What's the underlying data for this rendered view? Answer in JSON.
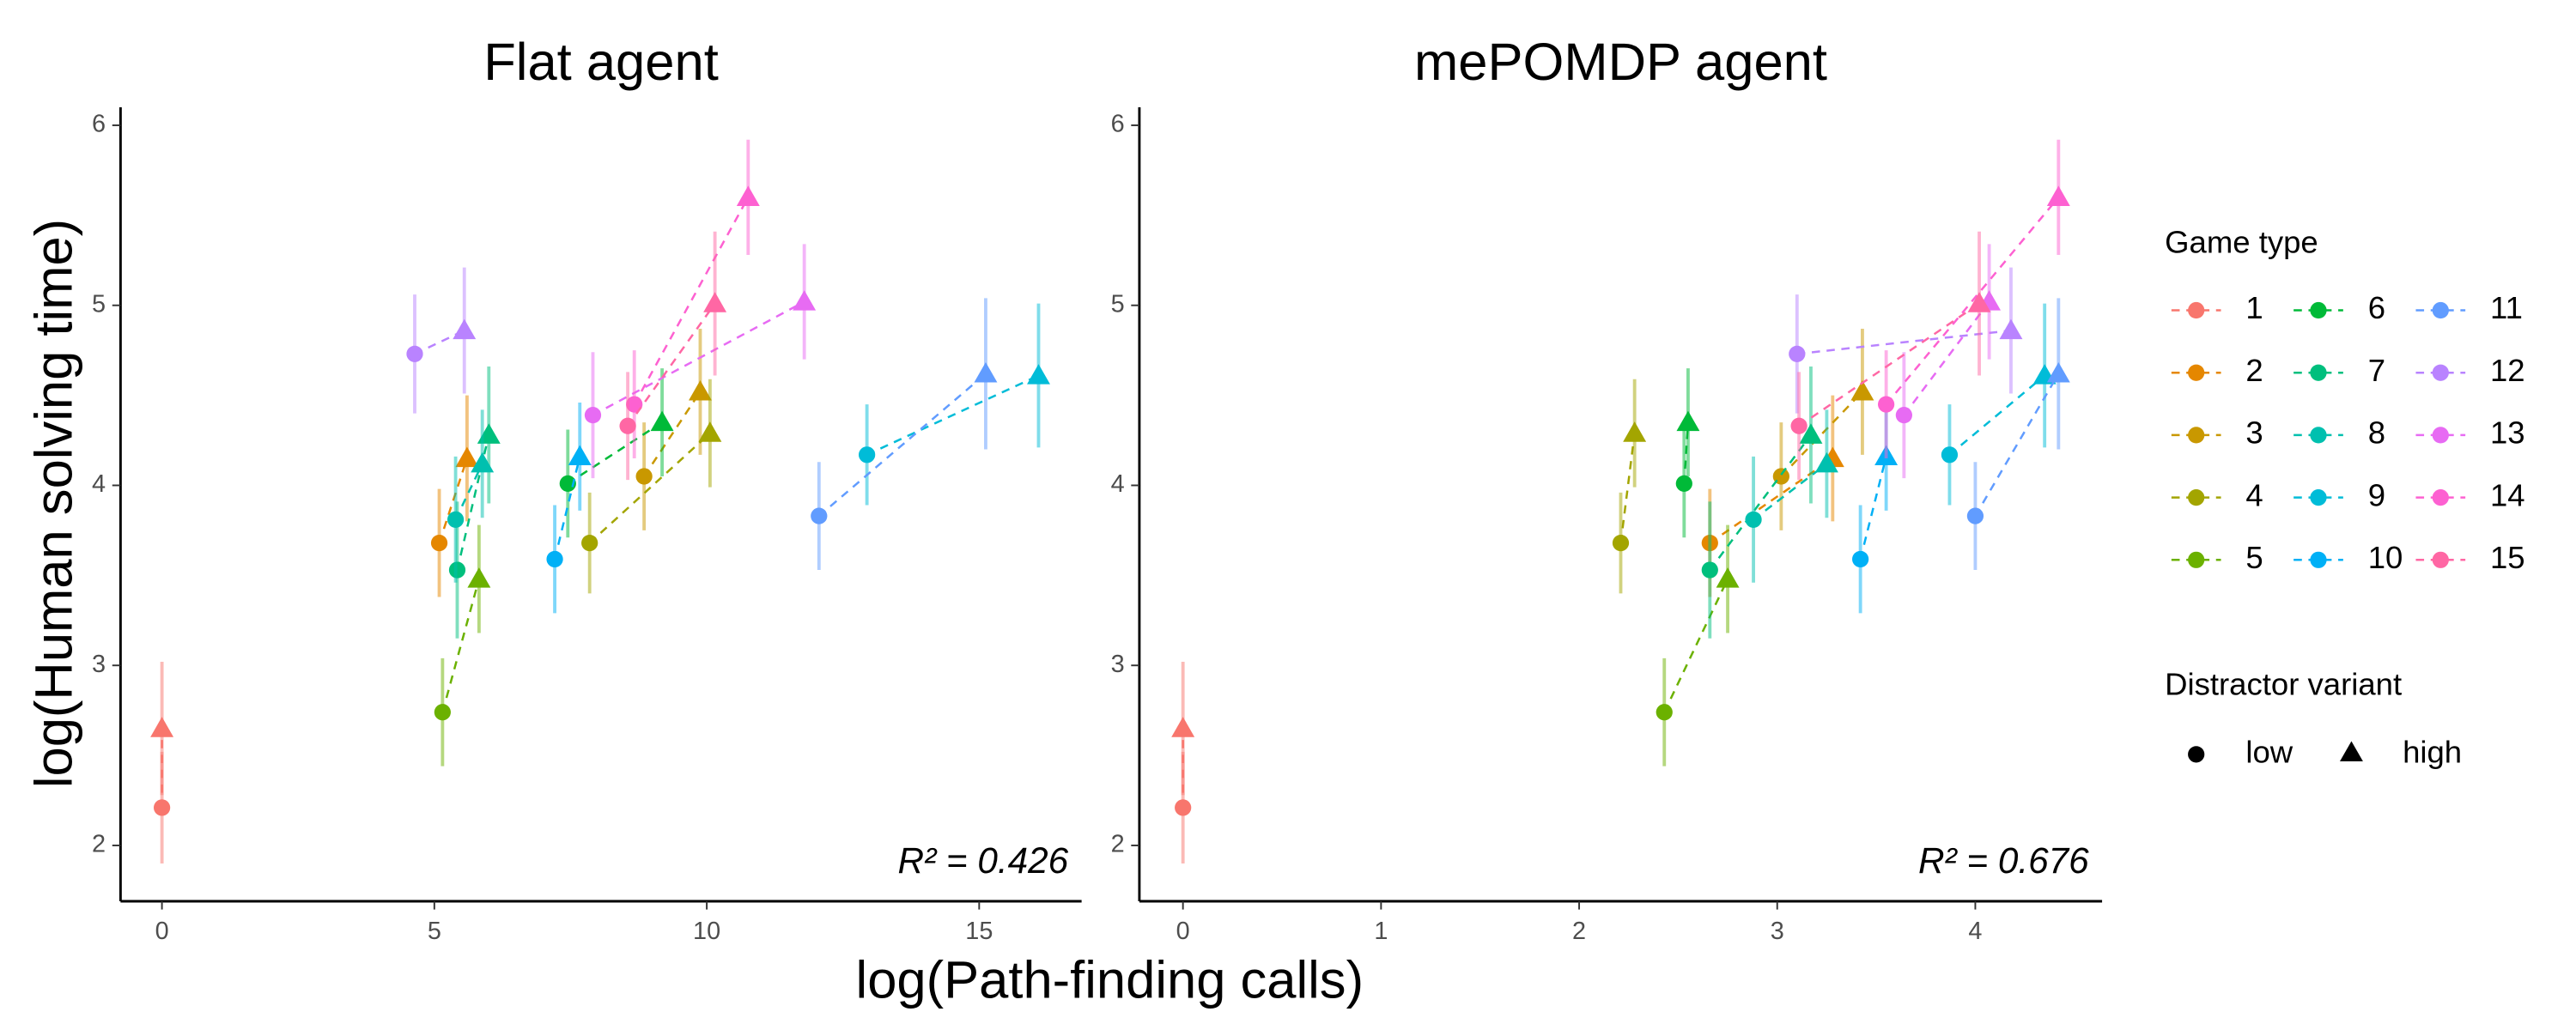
{
  "x_label": "log(Path-finding calls)",
  "y_label": "log(Human solving time)",
  "legend": {
    "title": "Game type"
  },
  "shape_legend": {
    "title": "Distractor variant",
    "labels": [
      "low",
      "high"
    ]
  },
  "chart_data": [
    {
      "type": "scatter",
      "title": "Flat agent",
      "annotation": "R² = 0.426",
      "xlim": [
        -0.76,
        16.88
      ],
      "xticks": [
        0,
        5,
        10,
        15
      ],
      "ylim": [
        1.69,
        6.1
      ],
      "yticks": [
        2,
        3,
        4,
        5,
        6
      ],
      "series": [
        {
          "name": "1",
          "color": "#F8766D",
          "x": [
            0,
            0
          ],
          "values": [
            2.21,
            2.65
          ],
          "errors": [
            0.31,
            0.37
          ]
        },
        {
          "name": "2",
          "color": "#E58700",
          "x": [
            5.09,
            5.6
          ],
          "values": [
            3.68,
            4.15
          ],
          "errors": [
            0.3,
            0.35
          ]
        },
        {
          "name": "3",
          "color": "#C99800",
          "x": [
            8.85,
            9.88
          ],
          "values": [
            4.05,
            4.52
          ],
          "errors": [
            0.3,
            0.35
          ]
        },
        {
          "name": "4",
          "color": "#A3A500",
          "x": [
            7.85,
            10.06
          ],
          "values": [
            3.68,
            4.29
          ],
          "errors": [
            0.28,
            0.3
          ]
        },
        {
          "name": "5",
          "color": "#6BB100",
          "x": [
            5.15,
            5.82
          ],
          "values": [
            2.74,
            3.48
          ],
          "errors": [
            0.3,
            0.3
          ]
        },
        {
          "name": "6",
          "color": "#00BA38",
          "x": [
            7.45,
            9.18
          ],
          "values": [
            4.01,
            4.35
          ],
          "errors": [
            0.3,
            0.3
          ]
        },
        {
          "name": "7",
          "color": "#00BF7D",
          "x": [
            5.42,
            6.0
          ],
          "values": [
            3.53,
            4.28
          ],
          "errors": [
            0.38,
            0.38
          ]
        },
        {
          "name": "8",
          "color": "#00C0AF",
          "x": [
            5.39,
            5.88
          ],
          "values": [
            3.81,
            4.12
          ],
          "errors": [
            0.35,
            0.3
          ]
        },
        {
          "name": "9",
          "color": "#00BCD8",
          "x": [
            12.94,
            16.09
          ],
          "values": [
            4.17,
            4.61
          ],
          "errors": [
            0.28,
            0.4
          ]
        },
        {
          "name": "10",
          "color": "#00B0F6",
          "x": [
            7.21,
            7.67
          ],
          "values": [
            3.59,
            4.16
          ],
          "errors": [
            0.3,
            0.3
          ]
        },
        {
          "name": "11",
          "color": "#619CFF",
          "x": [
            12.06,
            15.12
          ],
          "values": [
            3.83,
            4.62
          ],
          "errors": [
            0.3,
            0.42
          ]
        },
        {
          "name": "12",
          "color": "#B983FF",
          "x": [
            4.64,
            5.55
          ],
          "values": [
            4.73,
            4.86
          ],
          "errors": [
            0.33,
            0.35
          ]
        },
        {
          "name": "13",
          "color": "#E76BF3",
          "x": [
            7.91,
            11.79
          ],
          "values": [
            4.39,
            5.02
          ],
          "errors": [
            0.35,
            0.32
          ]
        },
        {
          "name": "14",
          "color": "#FD61D1",
          "x": [
            8.67,
            10.76
          ],
          "values": [
            4.45,
            5.6
          ],
          "errors": [
            0.3,
            0.32
          ]
        },
        {
          "name": "15",
          "color": "#FF67A4",
          "x": [
            8.55,
            10.15
          ],
          "values": [
            4.33,
            5.01
          ],
          "errors": [
            0.3,
            0.4
          ]
        }
      ]
    },
    {
      "type": "scatter",
      "title": "mePOMDP agent",
      "annotation": "R² = 0.676",
      "xlim": [
        -0.22,
        4.64
      ],
      "xticks": [
        0,
        1,
        2,
        3,
        4
      ],
      "ylim": [
        1.69,
        6.1
      ],
      "yticks": [
        2,
        3,
        4,
        5,
        6
      ],
      "series": [
        {
          "color": "#F8766D",
          "x": [
            0,
            0
          ],
          "values": [
            2.21,
            2.65
          ],
          "errors": [
            0.31,
            0.37
          ]
        },
        {
          "color": "#E58700",
          "x": [
            2.66,
            3.28
          ],
          "values": [
            3.68,
            4.15
          ],
          "errors": [
            0.3,
            0.35
          ]
        },
        {
          "color": "#C99800",
          "x": [
            3.02,
            3.43
          ],
          "values": [
            4.05,
            4.52
          ],
          "errors": [
            0.3,
            0.35
          ]
        },
        {
          "color": "#A3A500",
          "x": [
            2.21,
            2.28
          ],
          "values": [
            3.68,
            4.29
          ],
          "errors": [
            0.28,
            0.3
          ]
        },
        {
          "color": "#6BB100",
          "x": [
            2.43,
            2.75
          ],
          "values": [
            2.74,
            3.48
          ],
          "errors": [
            0.3,
            0.3
          ]
        },
        {
          "color": "#00BA38",
          "x": [
            2.53,
            2.55
          ],
          "values": [
            4.01,
            4.35
          ],
          "errors": [
            0.3,
            0.3
          ]
        },
        {
          "color": "#00BF7D",
          "x": [
            2.66,
            3.17
          ],
          "values": [
            3.53,
            4.28
          ],
          "errors": [
            0.38,
            0.38
          ]
        },
        {
          "color": "#00C0AF",
          "x": [
            2.88,
            3.25
          ],
          "values": [
            3.81,
            4.12
          ],
          "errors": [
            0.35,
            0.3
          ]
        },
        {
          "color": "#00BCD8",
          "x": [
            3.87,
            4.35
          ],
          "values": [
            4.17,
            4.61
          ],
          "errors": [
            0.28,
            0.4
          ]
        },
        {
          "color": "#00B0F6",
          "x": [
            3.42,
            3.55
          ],
          "values": [
            3.59,
            4.16
          ],
          "errors": [
            0.3,
            0.3
          ]
        },
        {
          "color": "#619CFF",
          "x": [
            4.0,
            4.42
          ],
          "values": [
            3.83,
            4.62
          ],
          "errors": [
            0.3,
            0.42
          ]
        },
        {
          "color": "#B983FF",
          "x": [
            3.1,
            4.18
          ],
          "values": [
            4.73,
            4.86
          ],
          "errors": [
            0.33,
            0.35
          ]
        },
        {
          "color": "#E76BF3",
          "x": [
            3.64,
            4.07
          ],
          "values": [
            4.39,
            5.02
          ],
          "errors": [
            0.35,
            0.32
          ]
        },
        {
          "color": "#FD61D1",
          "x": [
            3.55,
            4.42
          ],
          "values": [
            4.45,
            5.6
          ],
          "errors": [
            0.3,
            0.32
          ]
        },
        {
          "color": "#FF67A4",
          "x": [
            3.11,
            4.02
          ],
          "values": [
            4.33,
            5.01
          ],
          "errors": [
            0.3,
            0.4
          ]
        }
      ]
    }
  ]
}
